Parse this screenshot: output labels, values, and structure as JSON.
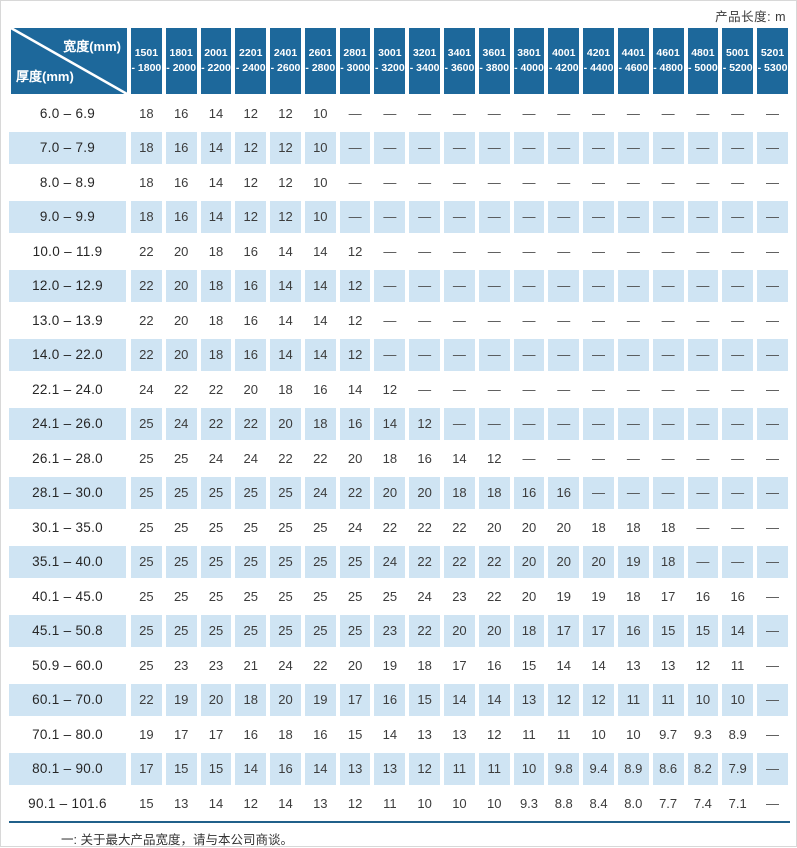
{
  "page": {
    "product_length_label": "产品长度: m",
    "footnote": "一: 关于最大产品宽度，请与本公司商谈。"
  },
  "colors": {
    "header_bg": "#1d689b",
    "stripe_bg": "#cfe4f3",
    "bottom_rule": "#20608a",
    "header_text": "#ffffff",
    "cell_text": "#3c3c3c"
  },
  "table": {
    "corner": {
      "width_label": "宽度(mm)",
      "thickness_label": "厚度(mm)"
    },
    "width_columns": [
      {
        "line1": "1501",
        "line2": "- 1800"
      },
      {
        "line1": "1801",
        "line2": "- 2000"
      },
      {
        "line1": "2001",
        "line2": "- 2200"
      },
      {
        "line1": "2201",
        "line2": "- 2400"
      },
      {
        "line1": "2401",
        "line2": "- 2600"
      },
      {
        "line1": "2601",
        "line2": "- 2800"
      },
      {
        "line1": "2801",
        "line2": "- 3000"
      },
      {
        "line1": "3001",
        "line2": "- 3200"
      },
      {
        "line1": "3201",
        "line2": "- 3400"
      },
      {
        "line1": "3401",
        "line2": "- 3600"
      },
      {
        "line1": "3601",
        "line2": "- 3800"
      },
      {
        "line1": "3801",
        "line2": "- 4000"
      },
      {
        "line1": "4001",
        "line2": "- 4200"
      },
      {
        "line1": "4201",
        "line2": "- 4400"
      },
      {
        "line1": "4401",
        "line2": "- 4600"
      },
      {
        "line1": "4601",
        "line2": "- 4800"
      },
      {
        "line1": "4801",
        "line2": "- 5000"
      },
      {
        "line1": "5001",
        "line2": "- 5200"
      },
      {
        "line1": "5201",
        "line2": "- 5300"
      }
    ],
    "rows": [
      {
        "thickness": "6.0 –  6.9",
        "values": [
          "18",
          "16",
          "14",
          "12",
          "12",
          "10",
          "—",
          "—",
          "—",
          "—",
          "—",
          "—",
          "—",
          "—",
          "—",
          "—",
          "—",
          "—",
          "—"
        ]
      },
      {
        "thickness": "7.0 –  7.9",
        "values": [
          "18",
          "16",
          "14",
          "12",
          "12",
          "10",
          "—",
          "—",
          "—",
          "—",
          "—",
          "—",
          "—",
          "—",
          "—",
          "—",
          "—",
          "—",
          "—"
        ]
      },
      {
        "thickness": "8.0 –  8.9",
        "values": [
          "18",
          "16",
          "14",
          "12",
          "12",
          "10",
          "—",
          "—",
          "—",
          "—",
          "—",
          "—",
          "—",
          "—",
          "—",
          "—",
          "—",
          "—",
          "—"
        ]
      },
      {
        "thickness": "9.0 –  9.9",
        "values": [
          "18",
          "16",
          "14",
          "12",
          "12",
          "10",
          "—",
          "—",
          "—",
          "—",
          "—",
          "—",
          "—",
          "—",
          "—",
          "—",
          "—",
          "—",
          "—"
        ]
      },
      {
        "thickness": "10.0 – 11.9",
        "values": [
          "22",
          "20",
          "18",
          "16",
          "14",
          "14",
          "12",
          "—",
          "—",
          "—",
          "—",
          "—",
          "—",
          "—",
          "—",
          "—",
          "—",
          "—",
          "—"
        ]
      },
      {
        "thickness": "12.0 – 12.9",
        "values": [
          "22",
          "20",
          "18",
          "16",
          "14",
          "14",
          "12",
          "—",
          "—",
          "—",
          "—",
          "—",
          "—",
          "—",
          "—",
          "—",
          "—",
          "—",
          "—"
        ]
      },
      {
        "thickness": "13.0 – 13.9",
        "values": [
          "22",
          "20",
          "18",
          "16",
          "14",
          "14",
          "12",
          "—",
          "—",
          "—",
          "—",
          "—",
          "—",
          "—",
          "—",
          "—",
          "—",
          "—",
          "—"
        ]
      },
      {
        "thickness": "14.0 – 22.0",
        "values": [
          "22",
          "20",
          "18",
          "16",
          "14",
          "14",
          "12",
          "—",
          "—",
          "—",
          "—",
          "—",
          "—",
          "—",
          "—",
          "—",
          "—",
          "—",
          "—"
        ]
      },
      {
        "thickness": "22.1 – 24.0",
        "values": [
          "24",
          "22",
          "22",
          "20",
          "18",
          "16",
          "14",
          "12",
          "—",
          "—",
          "—",
          "—",
          "—",
          "—",
          "—",
          "—",
          "—",
          "—",
          "—"
        ]
      },
      {
        "thickness": "24.1 – 26.0",
        "values": [
          "25",
          "24",
          "22",
          "22",
          "20",
          "18",
          "16",
          "14",
          "12",
          "—",
          "—",
          "—",
          "—",
          "—",
          "—",
          "—",
          "—",
          "—",
          "—"
        ]
      },
      {
        "thickness": "26.1 – 28.0",
        "values": [
          "25",
          "25",
          "24",
          "24",
          "22",
          "22",
          "20",
          "18",
          "16",
          "14",
          "12",
          "—",
          "—",
          "—",
          "—",
          "—",
          "—",
          "—",
          "—"
        ]
      },
      {
        "thickness": "28.1 – 30.0",
        "values": [
          "25",
          "25",
          "25",
          "25",
          "25",
          "24",
          "22",
          "20",
          "20",
          "18",
          "18",
          "16",
          "16",
          "—",
          "—",
          "—",
          "—",
          "—",
          "—"
        ]
      },
      {
        "thickness": "30.1 – 35.0",
        "values": [
          "25",
          "25",
          "25",
          "25",
          "25",
          "25",
          "24",
          "22",
          "22",
          "22",
          "20",
          "20",
          "20",
          "18",
          "18",
          "18",
          "—",
          "—",
          "—"
        ]
      },
      {
        "thickness": "35.1 – 40.0",
        "values": [
          "25",
          "25",
          "25",
          "25",
          "25",
          "25",
          "25",
          "24",
          "22",
          "22",
          "22",
          "20",
          "20",
          "20",
          "19",
          "18",
          "—",
          "—",
          "—"
        ]
      },
      {
        "thickness": "40.1 – 45.0",
        "values": [
          "25",
          "25",
          "25",
          "25",
          "25",
          "25",
          "25",
          "25",
          "24",
          "23",
          "22",
          "20",
          "19",
          "19",
          "18",
          "17",
          "16",
          "16",
          "—"
        ]
      },
      {
        "thickness": "45.1 – 50.8",
        "values": [
          "25",
          "25",
          "25",
          "25",
          "25",
          "25",
          "25",
          "23",
          "22",
          "20",
          "20",
          "18",
          "17",
          "17",
          "16",
          "15",
          "15",
          "14",
          "—"
        ]
      },
      {
        "thickness": "50.9 – 60.0",
        "values": [
          "25",
          "23",
          "23",
          "21",
          "24",
          "22",
          "20",
          "19",
          "18",
          "17",
          "16",
          "15",
          "14",
          "14",
          "13",
          "13",
          "12",
          "11",
          "—"
        ]
      },
      {
        "thickness": "60.1 – 70.0",
        "values": [
          "22",
          "19",
          "20",
          "18",
          "20",
          "19",
          "17",
          "16",
          "15",
          "14",
          "14",
          "13",
          "12",
          "12",
          "11",
          "11",
          "10",
          "10",
          "—"
        ]
      },
      {
        "thickness": "70.1 – 80.0",
        "values": [
          "19",
          "17",
          "17",
          "16",
          "18",
          "16",
          "15",
          "14",
          "13",
          "13",
          "12",
          "11",
          "11",
          "10",
          "10",
          "9.7",
          "9.3",
          "8.9",
          "—"
        ]
      },
      {
        "thickness": "80.1 – 90.0",
        "values": [
          "17",
          "15",
          "15",
          "14",
          "16",
          "14",
          "13",
          "13",
          "12",
          "11",
          "11",
          "10",
          "9.8",
          "9.4",
          "8.9",
          "8.6",
          "8.2",
          "7.9",
          "—"
        ]
      },
      {
        "thickness": "90.1 – 101.6",
        "values": [
          "15",
          "13",
          "14",
          "12",
          "14",
          "13",
          "12",
          "11",
          "10",
          "10",
          "10",
          "9.3",
          "8.8",
          "8.4",
          "8.0",
          "7.7",
          "7.4",
          "7.1",
          "—"
        ]
      }
    ]
  }
}
